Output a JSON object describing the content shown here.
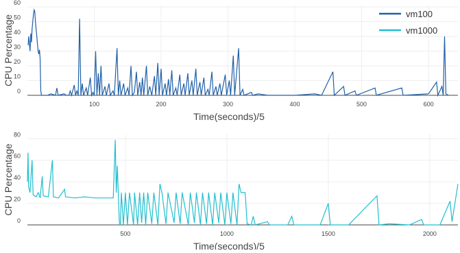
{
  "chart_data": [
    {
      "type": "line",
      "x_label": "Time(seconds)/5",
      "y_label": "CPU Percentage",
      "xlim": [
        0,
        644
      ],
      "ylim": [
        0,
        61
      ],
      "xticks": [
        100,
        200,
        300,
        400,
        500,
        600
      ],
      "yticks": [
        0,
        10,
        20,
        30,
        40,
        50,
        60
      ],
      "grid": true,
      "x": [
        1,
        2,
        3,
        4,
        5,
        6,
        7,
        8,
        9,
        10,
        11,
        12,
        13,
        14,
        15,
        16,
        17,
        18,
        19,
        20,
        21,
        30,
        35,
        42,
        44,
        46,
        55,
        58,
        62,
        64,
        66,
        70,
        72,
        74,
        76,
        78,
        80,
        82,
        84,
        88,
        90,
        94,
        96,
        98,
        100,
        102,
        104,
        106,
        108,
        110,
        112,
        116,
        118,
        122,
        124,
        128,
        130,
        134,
        136,
        138,
        140,
        144,
        146,
        150,
        152,
        155,
        157,
        160,
        163,
        165,
        168,
        170,
        172,
        174,
        178,
        180,
        183,
        186,
        190,
        192,
        195,
        197,
        200,
        202,
        206,
        208,
        211,
        213,
        216,
        218,
        222,
        224,
        228,
        230,
        234,
        236,
        240,
        242,
        246,
        248,
        252,
        254,
        258,
        260,
        264,
        266,
        270,
        272,
        276,
        278,
        282,
        284,
        288,
        290,
        296,
        298,
        302,
        304,
        308,
        310,
        316,
        318,
        322,
        324,
        335,
        337,
        345,
        360,
        400,
        430,
        440,
        457,
        459,
        473,
        475,
        490,
        492,
        520,
        522,
        560,
        562,
        600,
        612,
        614,
        620,
        622,
        624,
        626,
        630
      ],
      "series": [
        {
          "name": "vm100",
          "color": "#1f5fa8",
          "values": [
            34,
            40,
            35,
            30,
            42,
            36,
            45,
            50,
            55,
            58,
            57,
            50,
            45,
            40,
            35,
            30,
            28,
            31,
            25,
            3,
            0,
            0,
            1,
            0,
            5,
            0,
            1,
            0,
            0,
            3,
            0,
            7,
            0,
            3,
            0,
            52,
            0,
            8,
            0,
            5,
            0,
            12,
            0,
            2,
            0,
            30,
            0,
            15,
            0,
            20,
            0,
            6,
            0,
            8,
            0,
            3,
            0,
            32,
            0,
            10,
            0,
            8,
            0,
            5,
            0,
            20,
            0,
            2,
            16,
            0,
            9,
            0,
            12,
            0,
            20,
            0,
            6,
            0,
            13,
            0,
            22,
            0,
            18,
            0,
            8,
            0,
            11,
            0,
            17,
            0,
            5,
            0,
            14,
            0,
            8,
            0,
            15,
            0,
            10,
            0,
            18,
            0,
            9,
            0,
            12,
            0,
            4,
            0,
            16,
            0,
            6,
            0,
            8,
            0,
            14,
            0,
            10,
            0,
            27,
            0,
            32,
            0,
            4,
            0,
            2,
            0,
            1,
            0,
            0,
            1,
            0,
            16,
            0,
            6,
            0,
            3,
            0,
            5,
            0,
            5,
            0,
            1,
            9,
            0,
            6,
            0,
            40,
            1,
            0
          ]
        }
      ]
    },
    {
      "type": "line",
      "x_label": "Time(seconds)/5",
      "y_label": "CPU Percentage",
      "xlim": [
        17,
        2139
      ],
      "ylim": [
        0,
        84
      ],
      "xticks": [
        500,
        1000,
        1500,
        2000
      ],
      "yticks": [
        0,
        20,
        40,
        60,
        80
      ],
      "grid": true,
      "x": [
        17,
        20,
        23,
        30,
        40,
        45,
        60,
        70,
        80,
        90,
        95,
        120,
        140,
        145,
        170,
        200,
        205,
        250,
        300,
        350,
        440,
        450,
        455,
        460,
        470,
        475,
        480,
        490,
        500,
        510,
        520,
        540,
        545,
        560,
        570,
        580,
        590,
        600,
        610,
        630,
        640,
        660,
        670,
        680,
        700,
        710,
        740,
        750,
        770,
        780,
        810,
        820,
        840,
        850,
        870,
        880,
        900,
        910,
        930,
        940,
        960,
        970,
        990,
        1000,
        1020,
        1030,
        1050,
        1060,
        1070,
        1090,
        1100,
        1120,
        1130,
        1140,
        1200,
        1210,
        1300,
        1320,
        1330,
        1400,
        1460,
        1500,
        1510,
        1600,
        1740,
        1750,
        1800,
        1900,
        1960,
        1970,
        2050,
        2100,
        2110,
        2139
      ],
      "series": [
        {
          "name": "vm1000",
          "color": "#1fbfcf",
          "values": [
            40,
            67,
            35,
            30,
            60,
            28,
            26,
            30,
            25,
            45,
            27,
            26,
            60,
            26,
            25,
            33,
            26,
            25,
            26,
            25,
            25,
            79,
            30,
            55,
            2,
            0,
            30,
            0,
            30,
            0,
            30,
            0,
            30,
            0,
            30,
            2,
            30,
            0,
            30,
            1,
            30,
            0,
            38,
            30,
            1,
            30,
            2,
            30,
            1,
            30,
            0,
            30,
            2,
            30,
            0,
            30,
            1,
            30,
            0,
            30,
            2,
            30,
            0,
            30,
            1,
            30,
            0,
            38,
            30,
            30,
            1,
            0,
            8,
            0,
            3,
            0,
            0,
            8,
            0,
            0,
            0,
            20,
            0,
            0,
            27,
            0,
            1,
            0,
            5,
            0,
            0,
            22,
            3,
            38
          ]
        }
      ]
    }
  ]
}
